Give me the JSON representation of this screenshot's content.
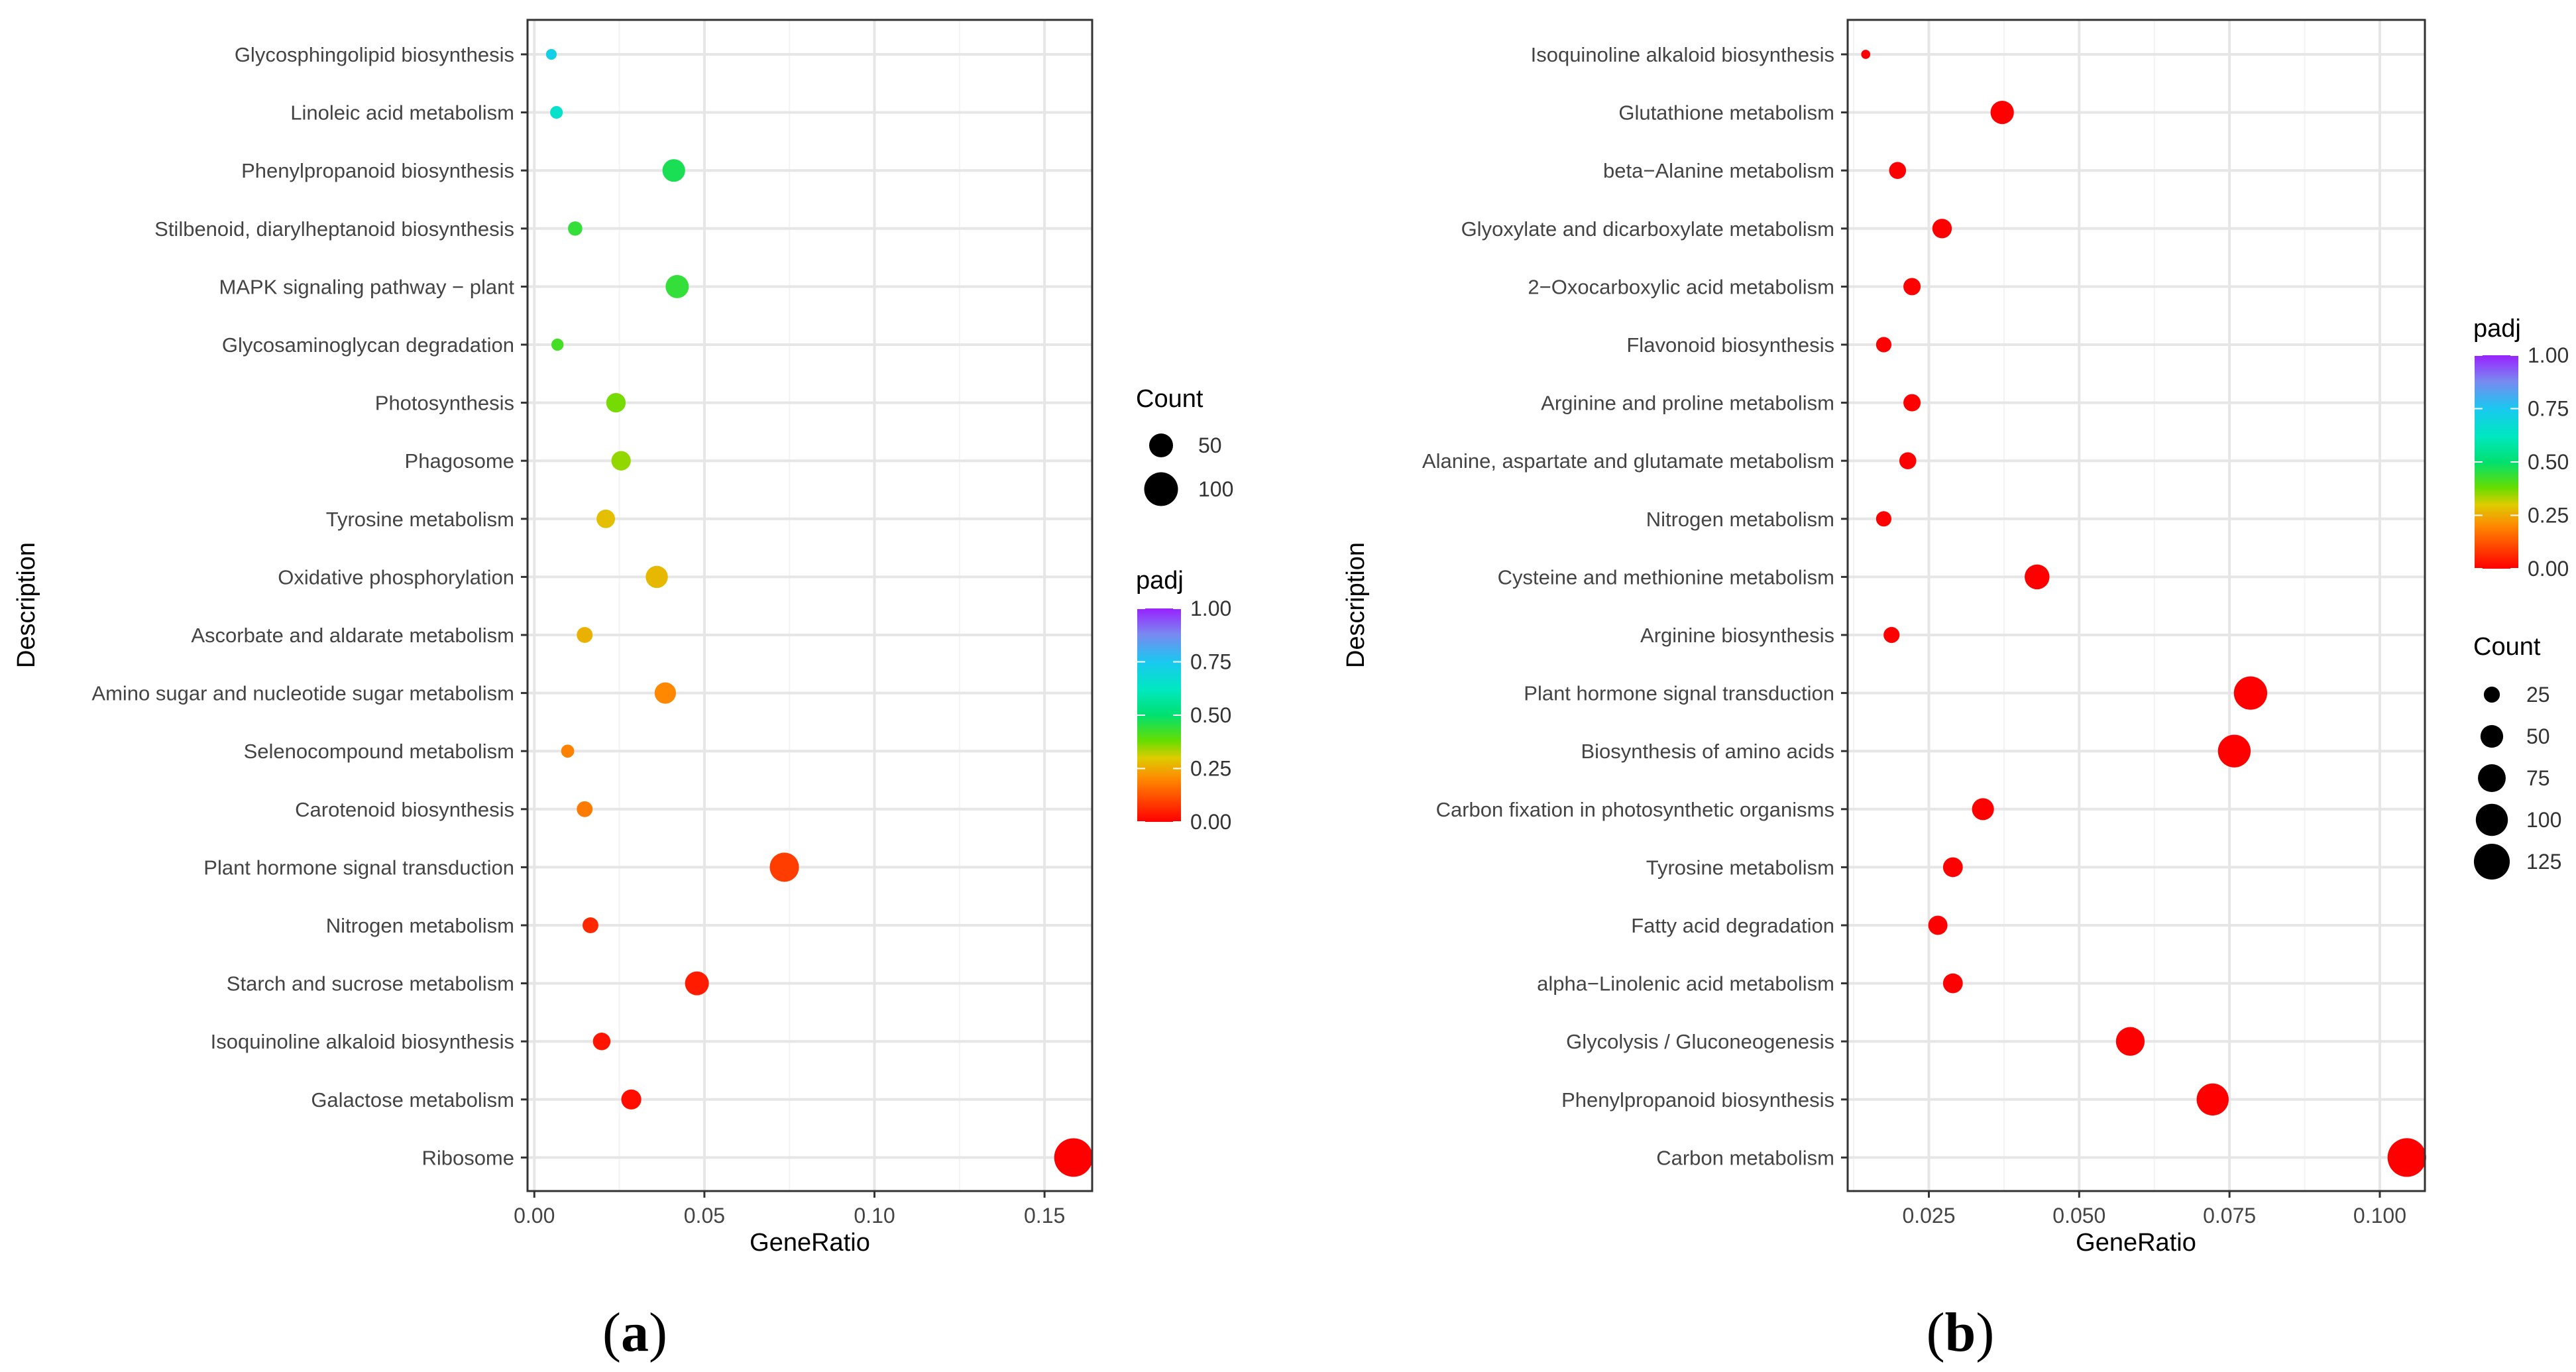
{
  "chart_data": [
    {
      "type": "scatter",
      "panel_label": "a",
      "xlabel": "GeneRatio",
      "ylabel": "Description",
      "xlim": [
        -0.002,
        0.164
      ],
      "xticks": [
        0.0,
        0.05,
        0.1,
        0.15
      ],
      "xtick_labels": [
        "0.00",
        "0.05",
        "0.10",
        "0.15"
      ],
      "grid": true,
      "size_legend": {
        "title": "Count",
        "entries": [
          {
            "value": 50,
            "label": "50"
          },
          {
            "value": 100,
            "label": "100"
          }
        ]
      },
      "color_legend": {
        "title": "padj",
        "range": [
          0,
          1
        ],
        "ticks": [
          1.0,
          0.75,
          0.5,
          0.25,
          0.0
        ],
        "tick_labels": [
          "1.00",
          "0.75",
          "0.50",
          "0.25",
          "0.00"
        ]
      },
      "legend_order": [
        "size",
        "color"
      ],
      "categories": [
        "Glycosphingolipid biosynthesis",
        "Linoleic acid metabolism",
        "Phenylpropanoid biosynthesis",
        "Stilbenoid, diarylheptanoid biosynthesis",
        "MAPK signaling pathway − plant",
        "Glycosaminoglycan degradation",
        "Photosynthesis",
        "Phagosome",
        "Tyrosine metabolism",
        "Oxidative phosphorylation",
        "Ascorbate and aldarate metabolism",
        "Amino sugar and nucleotide sugar metabolism",
        "Selenocompound metabolism",
        "Carotenoid biosynthesis",
        "Plant hormone signal transduction",
        "Nitrogen metabolism",
        "Starch and sucrose metabolism",
        "Isoquinoline alkaloid biosynthesis",
        "Galactose metabolism",
        "Ribosome"
      ],
      "gene_ratio": [
        0.005,
        0.0065,
        0.041,
        0.012,
        0.042,
        0.0068,
        0.024,
        0.0255,
        0.021,
        0.036,
        0.0148,
        0.0385,
        0.0098,
        0.0148,
        0.0735,
        0.0165,
        0.0478,
        0.0198,
        0.0285,
        0.1585
      ],
      "count": [
        10,
        14,
        45,
        18,
        47,
        13,
        33,
        33,
        30,
        43,
        22,
        40,
        15,
        22,
        75,
        22,
        50,
        27,
        35,
        130
      ],
      "padj": [
        0.72,
        0.65,
        0.47,
        0.44,
        0.44,
        0.42,
        0.37,
        0.35,
        0.28,
        0.27,
        0.26,
        0.2,
        0.19,
        0.18,
        0.09,
        0.06,
        0.04,
        0.03,
        0.02,
        0.0
      ]
    },
    {
      "type": "scatter",
      "panel_label": "b",
      "xlabel": "GeneRatio",
      "ylabel": "Description",
      "xlim": [
        0.0115,
        0.1075
      ],
      "xticks": [
        0.025,
        0.05,
        0.075,
        0.1
      ],
      "xtick_labels": [
        "0.025",
        "0.050",
        "0.075",
        "0.100"
      ],
      "grid": true,
      "size_legend": {
        "title": "Count",
        "entries": [
          {
            "value": 25,
            "label": "25"
          },
          {
            "value": 50,
            "label": "50"
          },
          {
            "value": 75,
            "label": "75"
          },
          {
            "value": 100,
            "label": "100"
          },
          {
            "value": 125,
            "label": "125"
          }
        ]
      },
      "color_legend": {
        "title": "padj",
        "range": [
          0,
          1
        ],
        "ticks": [
          1.0,
          0.75,
          0.5,
          0.25,
          0.0
        ],
        "tick_labels": [
          "1.00",
          "0.75",
          "0.50",
          "0.25",
          "0.00"
        ]
      },
      "legend_order": [
        "color",
        "size"
      ],
      "categories": [
        "Isoquinoline alkaloid biosynthesis",
        "Glutathione metabolism",
        "beta−Alanine metabolism",
        "Glyoxylate and dicarboxylate metabolism",
        "2−Oxocarboxylic acid metabolism",
        "Flavonoid biosynthesis",
        "Arginine and proline metabolism",
        "Alanine, aspartate and glutamate metabolism",
        "Nitrogen metabolism",
        "Cysteine and methionine metabolism",
        "Arginine biosynthesis",
        "Plant hormone signal transduction",
        "Biosynthesis of amino acids",
        "Carbon fixation in photosynthetic organisms",
        "Tyrosine metabolism",
        "Fatty acid degradation",
        "alpha−Linolenic acid metabolism",
        "Glycolysis / Gluconeogenesis",
        "Phenylpropanoid biosynthesis",
        "Carbon metabolism"
      ],
      "gene_ratio": [
        0.0145,
        0.0372,
        0.0198,
        0.0272,
        0.0222,
        0.0175,
        0.0222,
        0.0215,
        0.0175,
        0.043,
        0.0188,
        0.0785,
        0.0758,
        0.034,
        0.029,
        0.0265,
        0.029,
        0.0585,
        0.0722,
        0.1045
      ],
      "count": [
        8,
        53,
        28,
        37,
        29,
        23,
        29,
        28,
        23,
        60,
        25,
        108,
        104,
        47,
        38,
        36,
        38,
        80,
        100,
        145
      ],
      "padj": [
        0,
        0,
        0,
        0,
        0,
        0,
        0,
        0,
        0,
        0,
        0,
        0,
        0,
        0,
        0,
        0,
        0,
        0,
        0,
        0
      ]
    }
  ]
}
